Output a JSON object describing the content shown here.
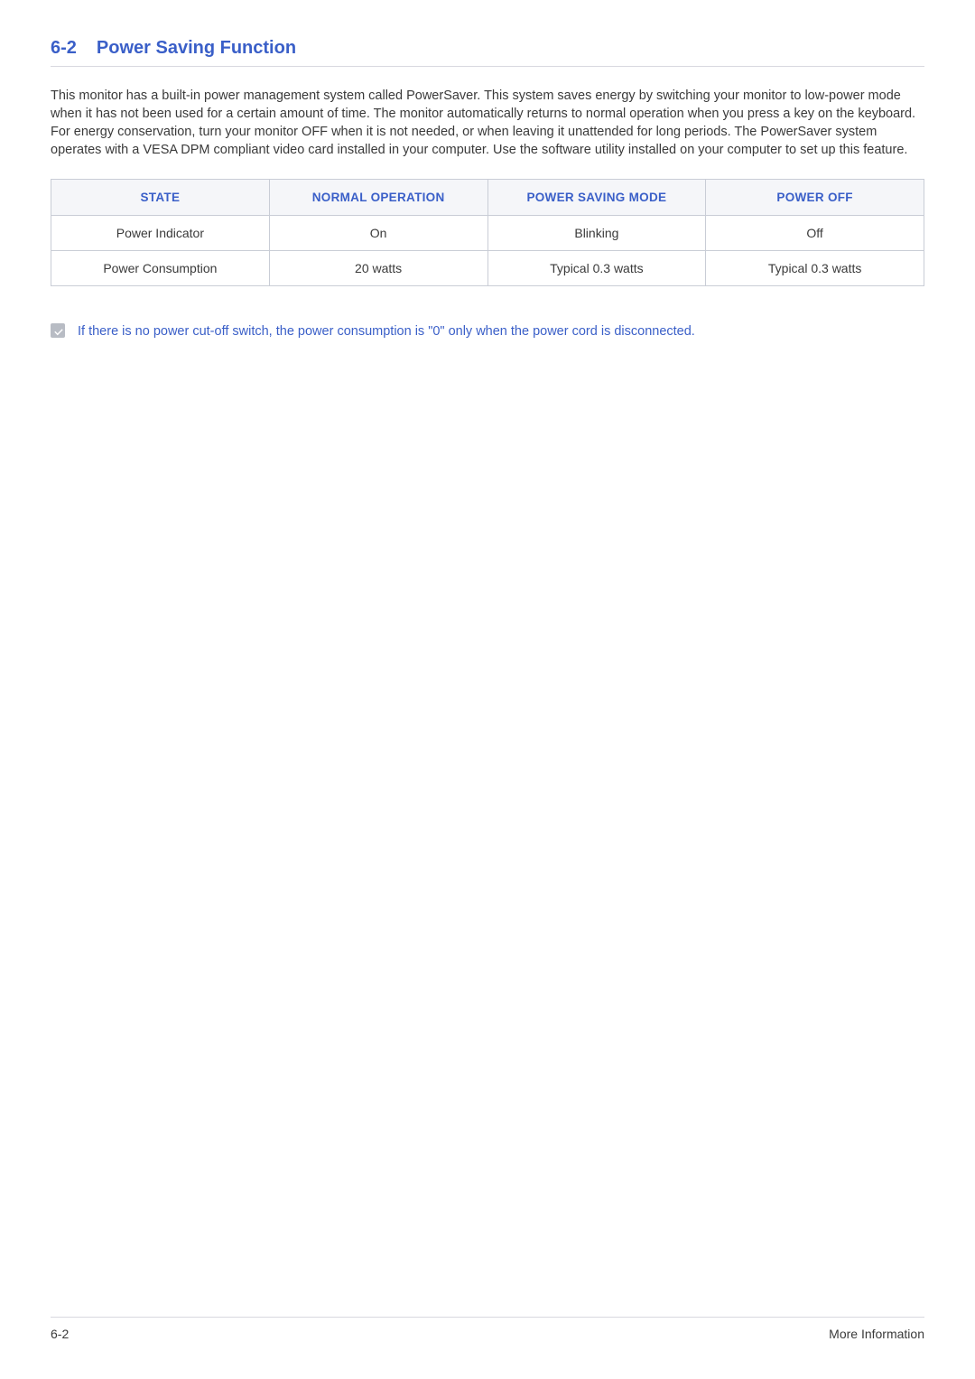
{
  "heading": {
    "number": "6-2",
    "title": "Power Saving Function"
  },
  "paragraph": "This monitor has a built-in power management system called PowerSaver. This system saves energy by switching your monitor to low-power mode when it has not been used for a certain amount of time. The monitor automatically returns to normal operation when you press a key on the keyboard. For energy conservation, turn your monitor OFF when it is not needed, or when leaving it unattended for long periods. The PowerSaver system operates with a VESA DPM compliant video card installed in your computer. Use the software utility installed on your computer to set up this feature.",
  "table": {
    "columns": [
      "STATE",
      "NORMAL OPERATION",
      "POWER SAVING MODE",
      "POWER OFF"
    ],
    "rows": [
      [
        "Power Indicator",
        "On",
        "Blinking",
        "Off"
      ],
      [
        "Power Consumption",
        "20 watts",
        "Typical 0.3 watts",
        "Typical 0.3 watts"
      ]
    ],
    "header_bg": "#f5f6f9",
    "header_color": "#3a5fc8",
    "border_color": "#c9cdd6",
    "cell_color": "#3a3a3a"
  },
  "note": "If there is no power cut-off switch, the power consumption is \"0\" only when the power cord is disconnected.",
  "footer": {
    "left": "6-2",
    "right": "More Information"
  },
  "colors": {
    "accent": "#3a5fc8",
    "text": "#3a3a3a",
    "rule": "#d8d8e0",
    "icon_bg": "#b8bcc4",
    "background": "#ffffff"
  }
}
